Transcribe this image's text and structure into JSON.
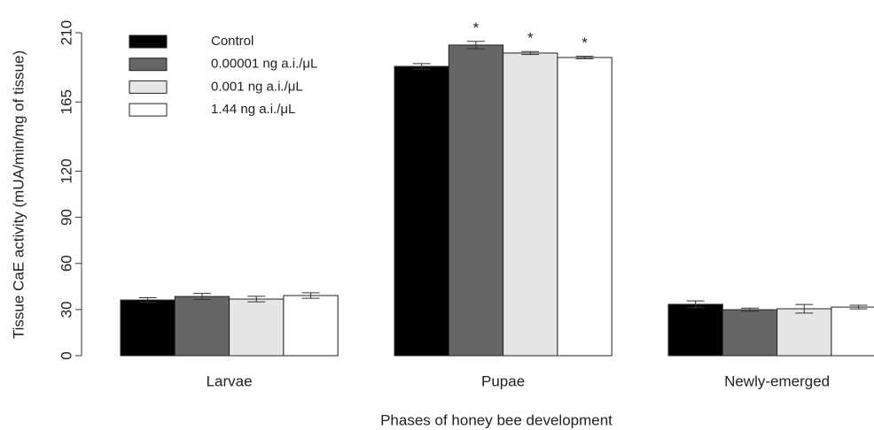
{
  "chart_data": {
    "type": "bar",
    "y_label": "Tissue CaE activity (mUA/min/mg of tissue)",
    "x_label": "Phases of honey bee development",
    "categories": [
      "Larvae",
      "Pupae",
      "Newly-emerged"
    ],
    "series": [
      {
        "name": "Control",
        "color": "#000000",
        "values": [
          36.2,
          188.1,
          33.4
        ],
        "errors": [
          1.5,
          1.8,
          2.2
        ],
        "annotations": [
          null,
          null,
          null
        ]
      },
      {
        "name": "0.00001 ng a.i./μL",
        "color": "#666666",
        "values": [
          38.5,
          202,
          29.9
        ],
        "errors": [
          2,
          2.4,
          1
        ],
        "annotations": [
          null,
          "*",
          null
        ]
      },
      {
        "name": "0.001 ng a.i./μL",
        "color": "#e6e6e6",
        "values": [
          36.8,
          196.8,
          30.5
        ],
        "errors": [
          1.8,
          1,
          2.8
        ],
        "annotations": [
          null,
          "*",
          null
        ]
      },
      {
        "name": "1.44 ng a.i./μL",
        "color": "#ffffff",
        "values": [
          39.1,
          193.9,
          31.6
        ],
        "errors": [
          1.8,
          0.8,
          1.2
        ],
        "annotations": [
          null,
          "*",
          null
        ]
      }
    ],
    "ylim": [
      0,
      210
    ],
    "yticks": [
      0,
      30,
      60,
      90,
      120,
      165,
      210
    ],
    "legend": "top-left"
  }
}
